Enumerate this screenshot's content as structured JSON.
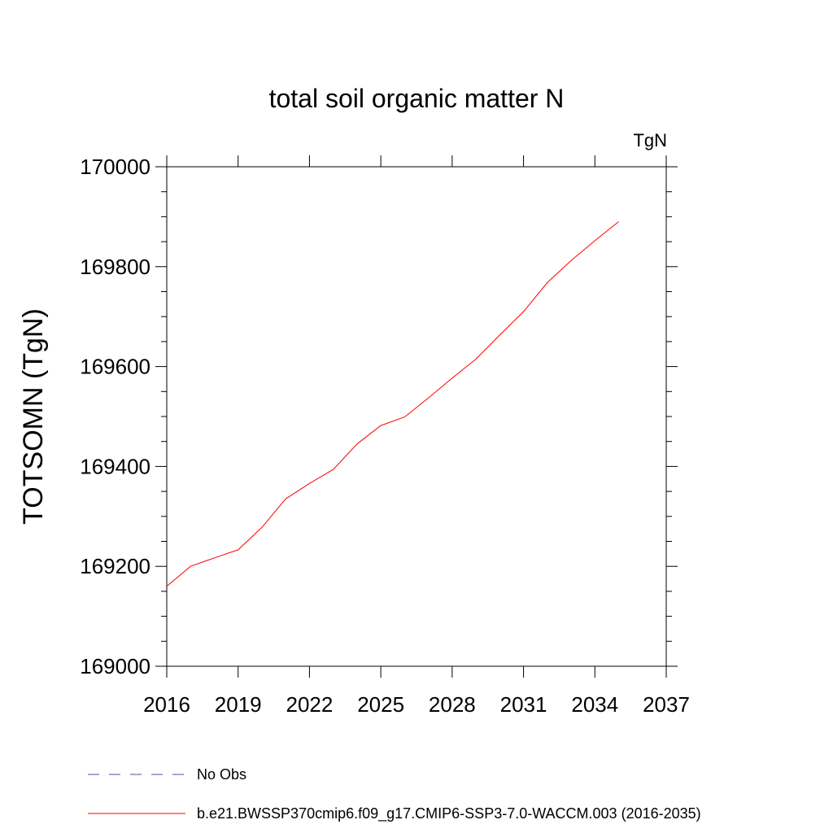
{
  "chart_data": {
    "type": "line",
    "title": "total soil organic matter N",
    "units": "TgN",
    "ylabel": "TOTSOMN  (TgN)",
    "xlabel": "",
    "xlim": [
      2016,
      2037
    ],
    "ylim": [
      169000,
      170000
    ],
    "x_ticks": [
      "2016",
      "2019",
      "2022",
      "2025",
      "2028",
      "2031",
      "2034",
      "2037"
    ],
    "y_ticks": [
      "169000",
      "169200",
      "169400",
      "169600",
      "169800",
      "170000"
    ],
    "grid": false,
    "legend_position": "bottom",
    "series": [
      {
        "name": "No Obs",
        "color": "#5a4aa0",
        "style": "dashed",
        "x": [],
        "values": []
      },
      {
        "name": "b.e21.BWSSP370cmip6.f09_g17.CMIP6-SSP3-7.0-WACCM.003 (2016-2035)",
        "color": "#ff0000",
        "style": "solid",
        "x": [
          2016,
          2017,
          2018,
          2019,
          2020,
          2021,
          2022,
          2023,
          2024,
          2025,
          2026,
          2027,
          2028,
          2029,
          2030,
          2031,
          2032,
          2033,
          2034,
          2035
        ],
        "values": [
          169160,
          169200,
          169217,
          169233,
          169278,
          169335,
          169366,
          169394,
          169445,
          169482,
          169499,
          169537,
          169577,
          169615,
          169663,
          169710,
          169768,
          169812,
          169852,
          169890
        ]
      }
    ]
  }
}
